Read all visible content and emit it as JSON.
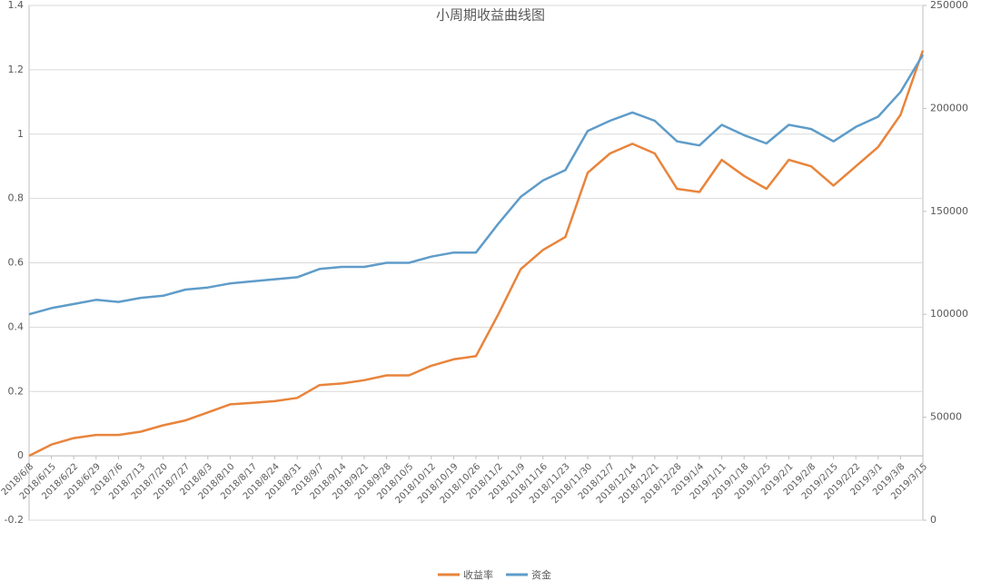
{
  "chart_data": {
    "type": "line",
    "title": "小周期收益曲线图",
    "categories": [
      "2018/6/8",
      "2018/6/15",
      "2018/6/22",
      "2018/6/29",
      "2018/7/6",
      "2018/7/13",
      "2018/7/20",
      "2018/7/27",
      "2018/8/3",
      "2018/8/10",
      "2018/8/17",
      "2018/8/24",
      "2018/8/31",
      "2018/9/7",
      "2018/9/14",
      "2018/9/21",
      "2018/9/28",
      "2018/10/5",
      "2018/10/12",
      "2018/10/19",
      "2018/10/26",
      "2018/11/2",
      "2018/11/9",
      "2018/11/16",
      "2018/11/23",
      "2018/11/30",
      "2018/12/7",
      "2018/12/14",
      "2018/12/21",
      "2018/12/28",
      "2019/1/4",
      "2019/1/11",
      "2019/1/18",
      "2019/1/25",
      "2019/2/1",
      "2019/2/8",
      "2019/2/15",
      "2019/2/22",
      "2019/3/1",
      "2019/3/8",
      "2019/3/15"
    ],
    "series": [
      {
        "name": "收益率",
        "color": "#e8843c",
        "axis": "y",
        "values": [
          0.0,
          0.035,
          0.055,
          0.065,
          0.065,
          0.075,
          0.095,
          0.11,
          0.135,
          0.16,
          0.165,
          0.17,
          0.18,
          0.22,
          0.225,
          0.235,
          0.25,
          0.25,
          0.28,
          0.3,
          0.31,
          0.44,
          0.58,
          0.64,
          0.68,
          0.88,
          0.94,
          0.97,
          0.94,
          0.83,
          0.82,
          0.92,
          0.87,
          0.83,
          0.92,
          0.9,
          0.84,
          0.9,
          0.96,
          1.06,
          1.26
        ]
      },
      {
        "name": "资金",
        "color": "#5f9cc9",
        "axis": "y2",
        "values": [
          100000,
          103000,
          105000,
          107000,
          106000,
          108000,
          109000,
          112000,
          113000,
          115000,
          116000,
          117000,
          118000,
          122000,
          123000,
          123000,
          125000,
          125000,
          128000,
          130000,
          130000,
          144000,
          157000,
          165000,
          170000,
          189000,
          194000,
          198000,
          194000,
          184000,
          182000,
          192000,
          187000,
          183000,
          192000,
          190000,
          184000,
          191000,
          196000,
          208000,
          226000
        ]
      }
    ],
    "ylim": [
      -0.2,
      1.4
    ],
    "yticks": [
      -0.2,
      0,
      0.2,
      0.4,
      0.6,
      0.8,
      1,
      1.2,
      1.4
    ],
    "y2lim": [
      0,
      250000
    ],
    "y2ticks": [
      0,
      50000,
      100000,
      150000,
      200000,
      250000
    ],
    "grid": true,
    "legend": "bottom"
  }
}
